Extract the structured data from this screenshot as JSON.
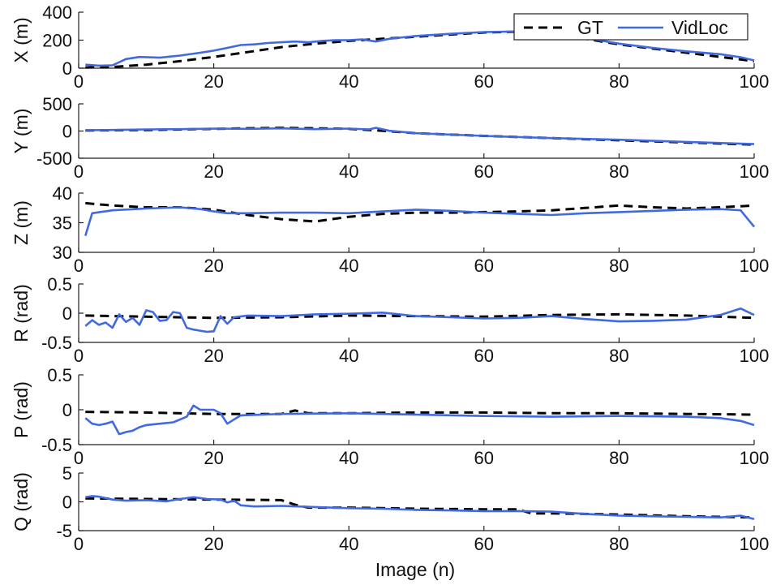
{
  "chart_data": [
    {
      "type": "line",
      "ylabel": "X (m)",
      "xlim": [
        0,
        100
      ],
      "ylim": [
        0,
        400
      ],
      "xticks": [
        "0",
        "20",
        "40",
        "60",
        "80",
        "100"
      ],
      "yticks": [
        "0",
        "200",
        "400"
      ],
      "legend": {
        "position": "top-right",
        "entries": [
          "GT",
          "VidLoc"
        ]
      },
      "series": [
        {
          "name": "GT",
          "style": "dashed",
          "color": "#000000",
          "x": [
            1,
            5,
            10,
            15,
            20,
            25,
            30,
            35,
            40,
            45,
            50,
            55,
            60,
            65,
            70,
            75,
            80,
            85,
            90,
            95,
            100
          ],
          "y": [
            5,
            8,
            25,
            50,
            80,
            115,
            150,
            175,
            195,
            210,
            225,
            240,
            255,
            260,
            245,
            210,
            170,
            140,
            110,
            80,
            50
          ]
        },
        {
          "name": "VidLoc",
          "style": "solid",
          "color": "#4169E1",
          "x": [
            1,
            3,
            5,
            7,
            9,
            12,
            15,
            18,
            20,
            22,
            24,
            26,
            28,
            30,
            32,
            34,
            36,
            38,
            40,
            42,
            44,
            46,
            48,
            50,
            55,
            60,
            65,
            70,
            75,
            80,
            85,
            90,
            95,
            98,
            100
          ],
          "y": [
            25,
            18,
            20,
            65,
            80,
            75,
            90,
            110,
            125,
            145,
            165,
            170,
            180,
            185,
            190,
            185,
            195,
            200,
            200,
            205,
            190,
            210,
            220,
            230,
            245,
            258,
            262,
            250,
            215,
            175,
            145,
            120,
            100,
            78,
            55
          ]
        }
      ]
    },
    {
      "type": "line",
      "ylabel": "Y (m)",
      "xlim": [
        0,
        100
      ],
      "ylim": [
        -500,
        500
      ],
      "xticks": [
        "0",
        "20",
        "40",
        "60",
        "80",
        "100"
      ],
      "yticks": [
        "-500",
        "0",
        "500"
      ],
      "series": [
        {
          "name": "GT",
          "style": "dashed",
          "color": "#000000",
          "x": [
            1,
            10,
            20,
            30,
            40,
            45,
            50,
            60,
            70,
            80,
            90,
            100
          ],
          "y": [
            10,
            20,
            40,
            60,
            40,
            5,
            -40,
            -90,
            -130,
            -170,
            -210,
            -250
          ]
        },
        {
          "name": "VidLoc",
          "style": "solid",
          "color": "#4169E1",
          "x": [
            1,
            5,
            10,
            15,
            20,
            25,
            30,
            35,
            40,
            43,
            44,
            46,
            50,
            60,
            70,
            80,
            90,
            100
          ],
          "y": [
            15,
            20,
            30,
            35,
            45,
            40,
            50,
            35,
            45,
            30,
            60,
            5,
            -40,
            -90,
            -130,
            -160,
            -200,
            -240
          ]
        }
      ]
    },
    {
      "type": "line",
      "ylabel": "Z (m)",
      "xlim": [
        0,
        100
      ],
      "ylim": [
        30,
        40
      ],
      "xticks": [
        "0",
        "20",
        "40",
        "60",
        "80",
        "100"
      ],
      "yticks": [
        "30",
        "35",
        "40"
      ],
      "series": [
        {
          "name": "GT",
          "style": "dashed",
          "color": "#000000",
          "x": [
            1,
            5,
            10,
            15,
            20,
            25,
            30,
            35,
            40,
            45,
            50,
            55,
            60,
            65,
            70,
            75,
            80,
            85,
            90,
            95,
            100
          ],
          "y": [
            38.3,
            37.9,
            37.6,
            37.6,
            37.2,
            36.3,
            35.6,
            35.2,
            36.0,
            36.5,
            36.7,
            36.7,
            36.8,
            36.9,
            37.1,
            37.5,
            37.9,
            37.6,
            37.4,
            37.6,
            37.9
          ]
        },
        {
          "name": "VidLoc",
          "style": "solid",
          "color": "#4169E1",
          "x": [
            1,
            2,
            5,
            10,
            15,
            18,
            20,
            22,
            25,
            30,
            35,
            40,
            45,
            50,
            55,
            60,
            65,
            70,
            75,
            80,
            85,
            90,
            95,
            98,
            100
          ],
          "y": [
            32.8,
            36.6,
            37.1,
            37.4,
            37.6,
            37.3,
            36.9,
            36.6,
            36.6,
            36.7,
            36.7,
            36.6,
            36.9,
            37.2,
            37.0,
            36.7,
            36.5,
            36.3,
            36.6,
            36.8,
            37.0,
            37.2,
            37.3,
            37.1,
            34.3
          ]
        }
      ]
    },
    {
      "type": "line",
      "ylabel": "R (rad)",
      "xlim": [
        0,
        100
      ],
      "ylim": [
        -0.5,
        0.5
      ],
      "xticks": [
        "0",
        "20",
        "40",
        "60",
        "80",
        "100"
      ],
      "yticks": [
        "-0.5",
        "0",
        "0.5"
      ],
      "series": [
        {
          "name": "GT",
          "style": "dashed",
          "color": "#000000",
          "x": [
            1,
            10,
            20,
            30,
            40,
            50,
            60,
            70,
            80,
            90,
            100
          ],
          "y": [
            -0.04,
            -0.06,
            -0.08,
            -0.07,
            -0.04,
            -0.05,
            -0.06,
            -0.03,
            -0.02,
            -0.04,
            -0.08
          ]
        },
        {
          "name": "VidLoc",
          "style": "solid",
          "color": "#4169E1",
          "x": [
            1,
            2,
            3,
            4,
            5,
            6,
            7,
            8,
            9,
            10,
            11,
            12,
            13,
            14,
            15,
            16,
            17,
            18,
            19,
            20,
            21,
            22,
            23,
            25,
            30,
            35,
            40,
            45,
            50,
            55,
            60,
            65,
            70,
            75,
            80,
            85,
            90,
            95,
            98,
            100
          ],
          "y": [
            -0.22,
            -0.12,
            -0.2,
            -0.16,
            -0.25,
            -0.02,
            -0.15,
            -0.08,
            -0.2,
            0.05,
            0.02,
            -0.13,
            -0.12,
            0.02,
            0.0,
            -0.25,
            -0.28,
            -0.3,
            -0.32,
            -0.31,
            -0.05,
            -0.18,
            -0.07,
            -0.04,
            -0.05,
            -0.02,
            -0.01,
            0.01,
            -0.05,
            -0.07,
            -0.09,
            -0.08,
            -0.05,
            -0.1,
            -0.14,
            -0.13,
            -0.11,
            -0.03,
            0.08,
            -0.03
          ]
        }
      ]
    },
    {
      "type": "line",
      "ylabel": "P (rad)",
      "xlim": [
        0,
        100
      ],
      "ylim": [
        -0.5,
        0.5
      ],
      "xticks": [
        "0",
        "20",
        "40",
        "60",
        "80",
        "100"
      ],
      "yticks": [
        "-0.5",
        "0",
        "0.5"
      ],
      "series": [
        {
          "name": "GT",
          "style": "dashed",
          "color": "#000000",
          "x": [
            1,
            10,
            20,
            30,
            32,
            34,
            40,
            50,
            60,
            70,
            80,
            90,
            100
          ],
          "y": [
            -0.03,
            -0.04,
            -0.06,
            -0.06,
            -0.01,
            -0.05,
            -0.05,
            -0.04,
            -0.04,
            -0.05,
            -0.05,
            -0.06,
            -0.07
          ]
        },
        {
          "name": "VidLoc",
          "style": "solid",
          "color": "#4169E1",
          "x": [
            1,
            2,
            3,
            4,
            5,
            6,
            7,
            8,
            9,
            10,
            12,
            14,
            16,
            17,
            18,
            20,
            21,
            22,
            24,
            30,
            40,
            50,
            60,
            70,
            80,
            90,
            95,
            98,
            100
          ],
          "y": [
            -0.12,
            -0.2,
            -0.22,
            -0.2,
            -0.17,
            -0.35,
            -0.32,
            -0.3,
            -0.25,
            -0.22,
            -0.2,
            -0.18,
            -0.1,
            0.06,
            0.0,
            0.0,
            -0.05,
            -0.2,
            -0.08,
            -0.06,
            -0.05,
            -0.07,
            -0.09,
            -0.1,
            -0.09,
            -0.1,
            -0.12,
            -0.16,
            -0.22
          ]
        }
      ]
    },
    {
      "type": "line",
      "ylabel": "Q (rad)",
      "xlim": [
        0,
        100
      ],
      "ylim": [
        -5,
        5
      ],
      "xticks": [
        "0",
        "20",
        "40",
        "60",
        "80",
        "100"
      ],
      "yticks": [
        "-5",
        "0",
        "5"
      ],
      "series": [
        {
          "name": "GT",
          "style": "dashed",
          "color": "#000000",
          "x": [
            1,
            10,
            20,
            30,
            32,
            34,
            40,
            50,
            60,
            65,
            67,
            70,
            80,
            90,
            100
          ],
          "y": [
            0.6,
            0.5,
            0.4,
            0.3,
            -0.5,
            -1.0,
            -1.0,
            -1.2,
            -1.3,
            -1.3,
            -2.0,
            -2.0,
            -2.2,
            -2.5,
            -2.7
          ]
        },
        {
          "name": "VidLoc",
          "style": "solid",
          "color": "#4169E1",
          "x": [
            1,
            2,
            3,
            5,
            7,
            10,
            13,
            15,
            17,
            19,
            21,
            22,
            23,
            24,
            26,
            30,
            35,
            40,
            45,
            50,
            55,
            60,
            65,
            70,
            75,
            80,
            85,
            90,
            95,
            98,
            100
          ],
          "y": [
            0.8,
            1.0,
            0.9,
            0.4,
            0.2,
            0.3,
            0.1,
            0.5,
            0.8,
            0.5,
            0.4,
            -0.1,
            0.2,
            -0.6,
            -0.8,
            -0.7,
            -0.9,
            -1.1,
            -1.2,
            -1.4,
            -1.5,
            -1.6,
            -1.6,
            -1.7,
            -2.1,
            -2.4,
            -2.5,
            -2.6,
            -2.7,
            -2.4,
            -3.0
          ]
        }
      ]
    }
  ],
  "xlabel": "Image (n)"
}
